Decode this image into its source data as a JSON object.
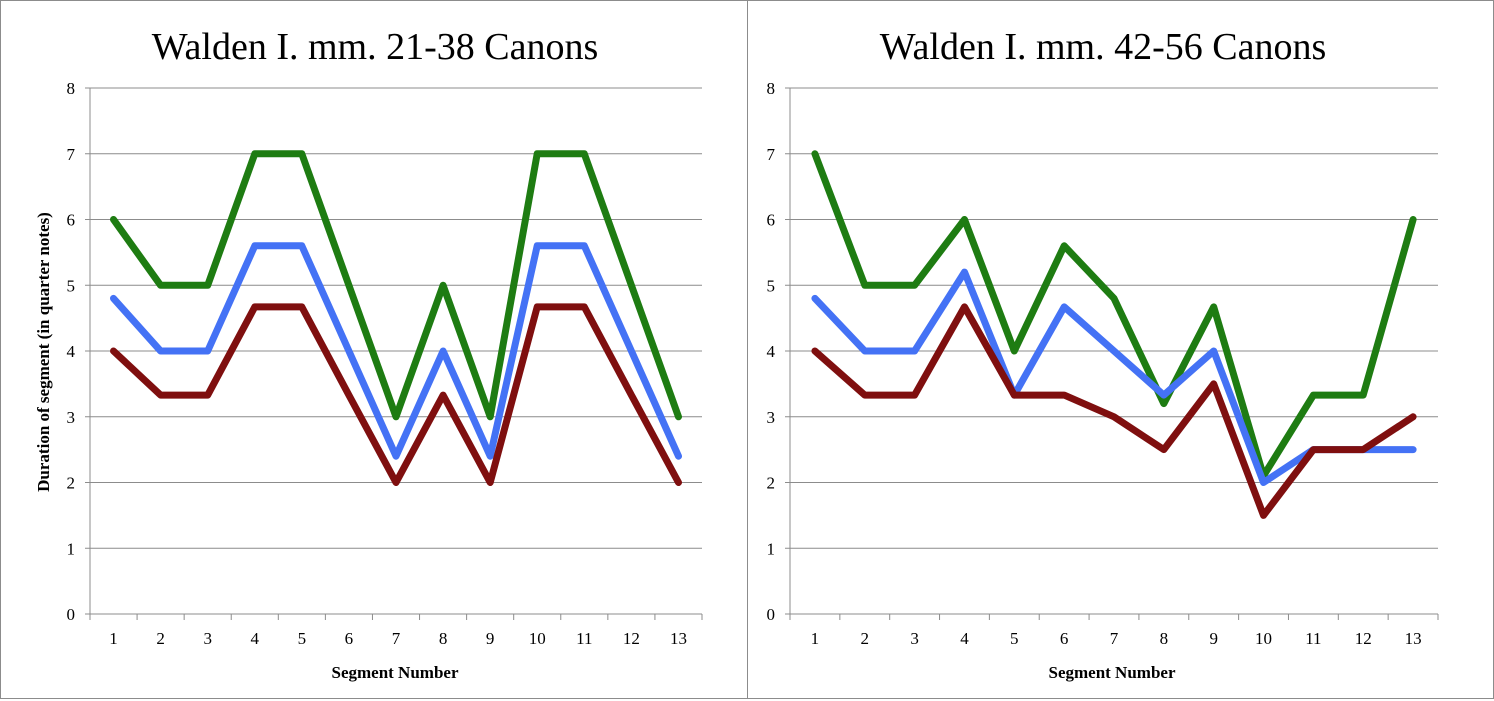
{
  "chart_data": [
    {
      "type": "line",
      "title": "Walden I. mm. 21-38 Canons",
      "xlabel": "Segment Number",
      "ylabel": "Duration of segment (in quarter notes)",
      "ylim": [
        0,
        8
      ],
      "yticks": [
        "0",
        "1",
        "2",
        "3",
        "4",
        "5",
        "6",
        "7",
        "8"
      ],
      "categories": [
        "1",
        "2",
        "3",
        "4",
        "5",
        "6",
        "7",
        "8",
        "9",
        "10",
        "11",
        "12",
        "13"
      ],
      "grid": true,
      "series": [
        {
          "color": "#1e7c12",
          "values": [
            6,
            5,
            5,
            7,
            7,
            5,
            3,
            5,
            3,
            7,
            7,
            5,
            3
          ]
        },
        {
          "color": "#4472f5",
          "values": [
            4.8,
            4,
            4,
            5.6,
            5.6,
            4,
            2.4,
            4,
            2.4,
            5.6,
            5.6,
            4,
            2.4
          ]
        },
        {
          "color": "#7f0f0f",
          "values": [
            4,
            3.33,
            3.33,
            4.67,
            4.67,
            3.33,
            2,
            3.33,
            2,
            4.67,
            4.67,
            3.33,
            2
          ]
        }
      ]
    },
    {
      "type": "line",
      "title": "Walden I. mm. 42-56 Canons",
      "xlabel": "Segment Number",
      "ylabel": "",
      "ylim": [
        0,
        8
      ],
      "yticks": [
        "0",
        "1",
        "2",
        "3",
        "4",
        "5",
        "6",
        "7",
        "8"
      ],
      "categories": [
        "1",
        "2",
        "3",
        "4",
        "5",
        "6",
        "7",
        "8",
        "9",
        "10",
        "11",
        "12",
        "13"
      ],
      "grid": true,
      "series": [
        {
          "color": "#1e7c12",
          "values": [
            7,
            5,
            5,
            6,
            4,
            5.6,
            4.8,
            3.2,
            4.67,
            2.1,
            3.33,
            3.33,
            6
          ]
        },
        {
          "color": "#4472f5",
          "values": [
            4.8,
            4,
            4,
            5.2,
            3.33,
            4.67,
            4,
            3.33,
            4,
            2,
            2.5,
            2.5,
            2.5
          ]
        },
        {
          "color": "#7f0f0f",
          "values": [
            4,
            3.33,
            3.33,
            4.67,
            3.33,
            3.33,
            3,
            2.5,
            3.5,
            1.5,
            2.5,
            2.5,
            3
          ]
        }
      ]
    }
  ]
}
